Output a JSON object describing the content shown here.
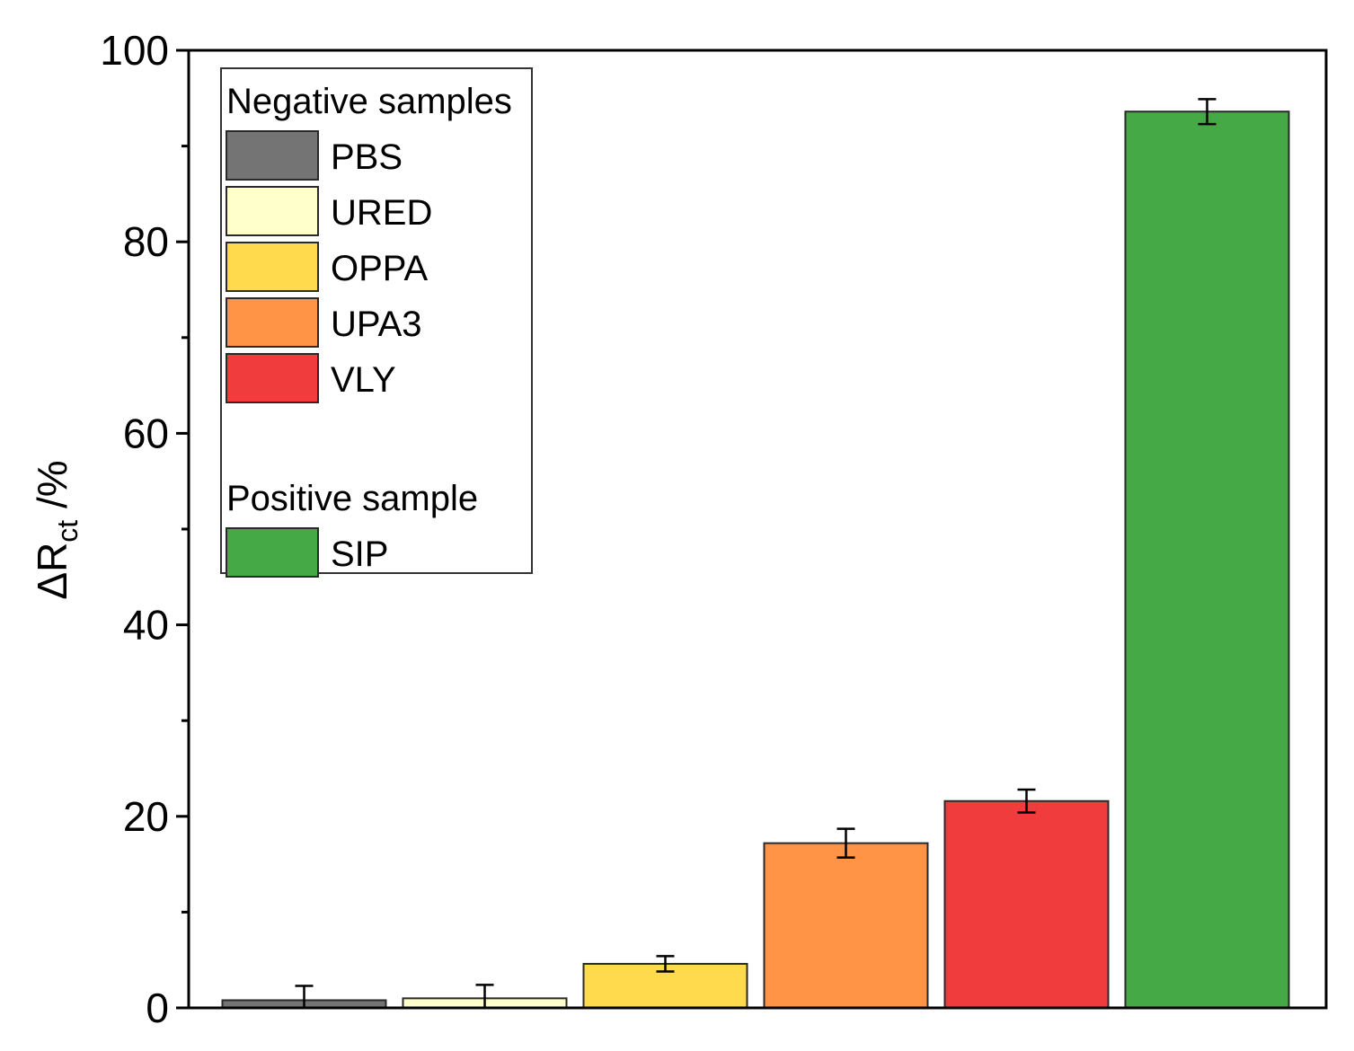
{
  "chart_data": {
    "type": "bar",
    "title": "",
    "xlabel": "",
    "ylabel": {
      "main": "ΔR",
      "subscript": "ct",
      "suffix": " /%"
    },
    "ylim": [
      0,
      100
    ],
    "yticks": [
      0,
      20,
      40,
      60,
      80,
      100
    ],
    "yticks_labels": [
      "0",
      "20",
      "40",
      "60",
      "80",
      "100"
    ],
    "minor_ytick_step": 10,
    "grid": false,
    "categories": [
      "PBS",
      "URED",
      "OPPA",
      "UPA3",
      "VLY",
      "SIP"
    ],
    "values": [
      0.8,
      1.0,
      4.6,
      17.2,
      21.6,
      93.6
    ],
    "errors": [
      1.5,
      1.4,
      0.8,
      1.5,
      1.2,
      1.3
    ],
    "colors": [
      "#747474",
      "#ffffcc",
      "#ffda4d",
      "#ff9447",
      "#f03c3c",
      "#45aa45"
    ],
    "legend": {
      "placement": "top-left",
      "groups": [
        {
          "heading": "Negative samples",
          "entries": [
            {
              "label": "PBS",
              "color": "#747474"
            },
            {
              "label": "URED",
              "color": "#ffffcc"
            },
            {
              "label": "OPPA",
              "color": "#ffda4d"
            },
            {
              "label": "UPA3",
              "color": "#ff9447"
            },
            {
              "label": "VLY",
              "color": "#f03c3c"
            }
          ]
        },
        {
          "heading": "Positive sample",
          "entries": [
            {
              "label": "SIP",
              "color": "#45aa45"
            }
          ]
        }
      ]
    }
  }
}
